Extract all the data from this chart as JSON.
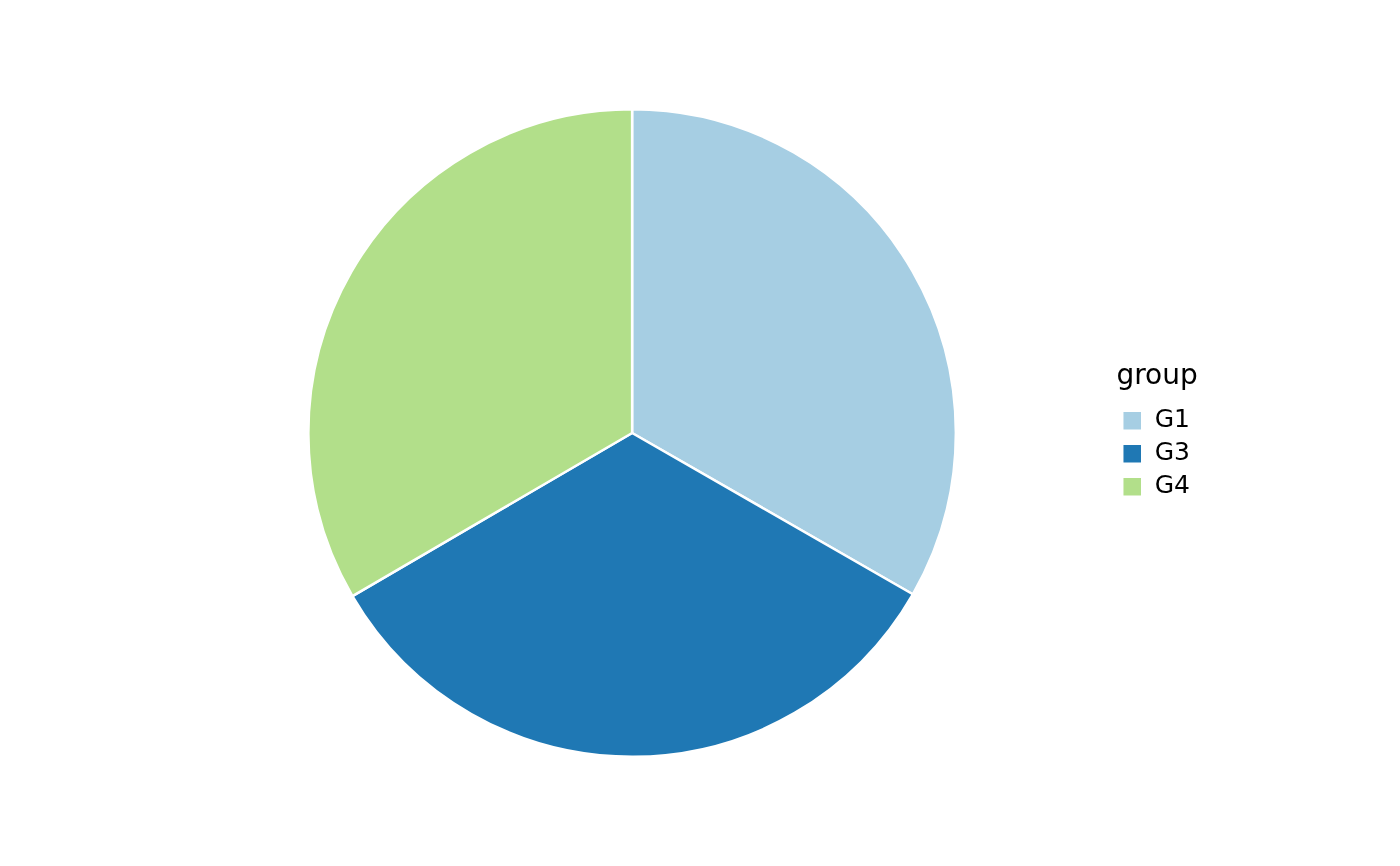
{
  "chart_data": {
    "type": "pie",
    "legend_title": "group",
    "legend": "right",
    "categories": [
      "G1",
      "G3",
      "G4"
    ],
    "values": [
      33.3,
      33.3,
      33.4
    ],
    "colors": [
      "#a6cee3",
      "#1f78b4",
      "#b2df8a"
    ]
  }
}
